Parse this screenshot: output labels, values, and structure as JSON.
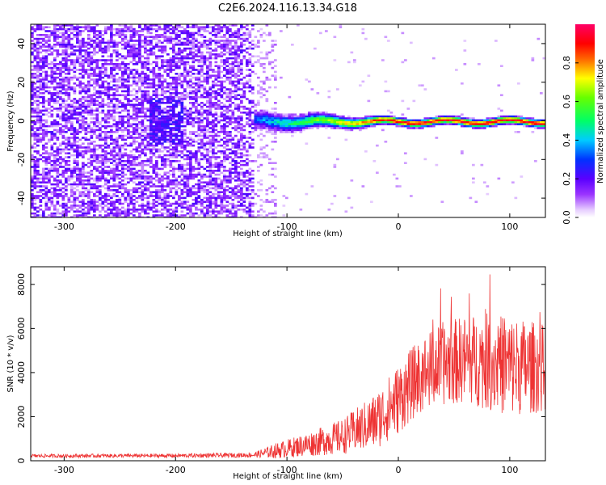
{
  "figure": {
    "title": "C2E6.2024.116.13.34.G18"
  },
  "chart_data": [
    {
      "type": "heatmap",
      "xlabel": "Height of straight line (km)",
      "ylabel": "Frequency (Hz)",
      "xlim": [
        -330,
        132
      ],
      "ylim": [
        -50,
        50
      ],
      "x_ticks": [
        -300,
        -200,
        -100,
        0,
        100
      ],
      "y_ticks": [
        -40,
        -20,
        0,
        20,
        40
      ],
      "colorbar": {
        "label": "Normalized spectral amplitude",
        "range": [
          0,
          1
        ],
        "ticks": [
          0.0,
          0.2,
          0.4,
          0.6,
          0.8
        ],
        "colormap": "rainbow (white-purple-blue-cyan-green-yellow-red-magenta)"
      },
      "description_of_structure": {
        "noise_region_x_range": [
          -330,
          -130
        ],
        "signal_line_frequency_hz": 0,
        "signal_emerges_near_x": -130,
        "signal_strong_beyond_x": -10
      }
    },
    {
      "type": "line",
      "xlabel": "Height of straight line (km)",
      "ylabel": "SNR (10 * v/v)",
      "xlim": [
        -330,
        132
      ],
      "ylim": [
        0,
        8800
      ],
      "x_ticks": [
        -300,
        -200,
        -100,
        0,
        100
      ],
      "y_ticks": [
        0,
        2000,
        4000,
        6000,
        8000
      ],
      "color": "#ee3333",
      "envelope": [
        {
          "x": -330,
          "mean": 220,
          "spread": 80
        },
        {
          "x": -200,
          "mean": 230,
          "spread": 90
        },
        {
          "x": -130,
          "mean": 260,
          "spread": 110
        },
        {
          "x": -110,
          "mean": 450,
          "spread": 350
        },
        {
          "x": -80,
          "mean": 750,
          "spread": 550
        },
        {
          "x": -50,
          "mean": 1100,
          "spread": 800
        },
        {
          "x": -20,
          "mean": 1800,
          "spread": 1300
        },
        {
          "x": 0,
          "mean": 2800,
          "spread": 1600
        },
        {
          "x": 20,
          "mean": 3900,
          "spread": 1700
        },
        {
          "x": 40,
          "mean": 4400,
          "spread": 1900
        },
        {
          "x": 60,
          "mean": 4600,
          "spread": 2000
        },
        {
          "x": 80,
          "mean": 4500,
          "spread": 2200
        },
        {
          "x": 100,
          "mean": 4300,
          "spread": 2300
        },
        {
          "x": 132,
          "mean": 4200,
          "spread": 2000
        }
      ]
    }
  ]
}
